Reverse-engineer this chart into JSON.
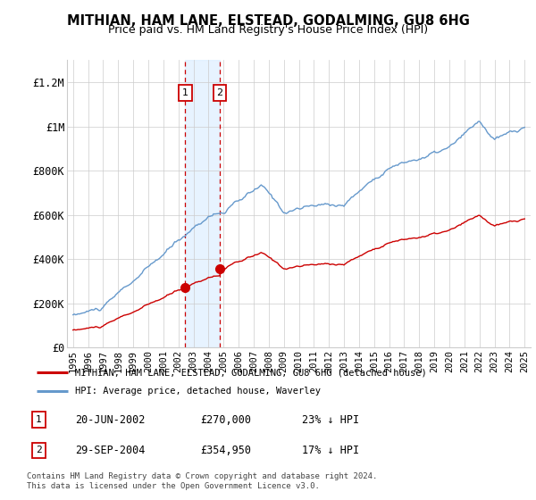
{
  "title": "MITHIAN, HAM LANE, ELSTEAD, GODALMING, GU8 6HG",
  "subtitle": "Price paid vs. HM Land Registry's House Price Index (HPI)",
  "legend_label_red": "MITHIAN, HAM LANE, ELSTEAD, GODALMING, GU8 6HG (detached house)",
  "legend_label_blue": "HPI: Average price, detached house, Waverley",
  "footnote": "Contains HM Land Registry data © Crown copyright and database right 2024.\nThis data is licensed under the Open Government Licence v3.0.",
  "transaction_table": [
    [
      "1",
      "20-JUN-2002",
      "£270,000",
      "23% ↓ HPI"
    ],
    [
      "2",
      "29-SEP-2004",
      "£354,950",
      "17% ↓ HPI"
    ]
  ],
  "sale1_year": 2002.458,
  "sale1_price": 270000,
  "sale2_year": 2004.75,
  "sale2_price": 354950,
  "ylim": [
    0,
    1300000
  ],
  "yticks": [
    0,
    200000,
    400000,
    600000,
    800000,
    1000000,
    1200000
  ],
  "ytick_labels": [
    "£0",
    "£200K",
    "£400K",
    "£600K",
    "£800K",
    "£1M",
    "£1.2M"
  ],
  "color_red": "#cc0000",
  "color_blue": "#6699cc",
  "color_shade": "#ddeeff",
  "background_color": "#ffffff",
  "grid_color": "#cccccc"
}
